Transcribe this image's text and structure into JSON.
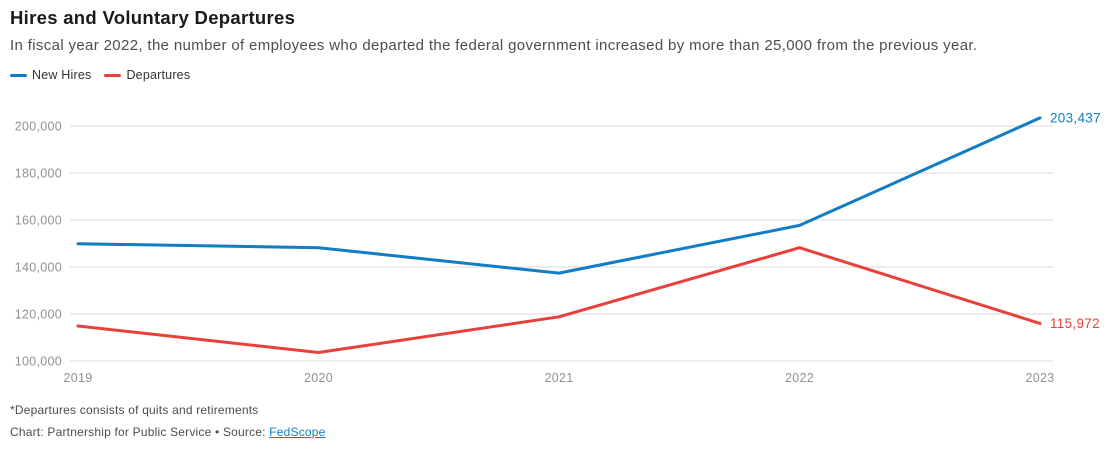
{
  "header": {
    "title": "Hires and Voluntary Departures",
    "subtitle": "In fiscal year 2022, the number of employees who departed the federal government increased by more than 25,000 from the previous year."
  },
  "legend": {
    "items": [
      {
        "label": "New Hires",
        "color": "#117dc4"
      },
      {
        "label": "Departures",
        "color": "#e8403a"
      }
    ]
  },
  "chart_data": {
    "type": "line",
    "title": "Hires and Voluntary Departures",
    "x": [
      "2019",
      "2020",
      "2021",
      "2022",
      "2023"
    ],
    "series": [
      {
        "name": "New Hires",
        "color": "#117dc4",
        "values": [
          149900,
          148200,
          137400,
          157700,
          203437
        ],
        "end_label": "203,437"
      },
      {
        "name": "Departures",
        "color": "#e8403a",
        "values": [
          114900,
          103600,
          118800,
          148200,
          115972
        ],
        "end_label": "115,972"
      }
    ],
    "ylim": [
      100000,
      200000
    ],
    "yticks": [
      100000,
      120000,
      140000,
      160000,
      180000,
      200000
    ],
    "ytick_labels": [
      "100,000",
      "120,000",
      "140,000",
      "160,000",
      "180,000",
      "200,000"
    ],
    "grid": "horizontal",
    "gridline_color": "#d9d9d9",
    "tick_label_color": "#919191",
    "legend_position": "top-left"
  },
  "footer": {
    "note": "*Departures consists of quits and retirements",
    "credit_prefix": "Chart: Partnership for Public Service • Source: ",
    "source_link_label": "FedScope"
  }
}
